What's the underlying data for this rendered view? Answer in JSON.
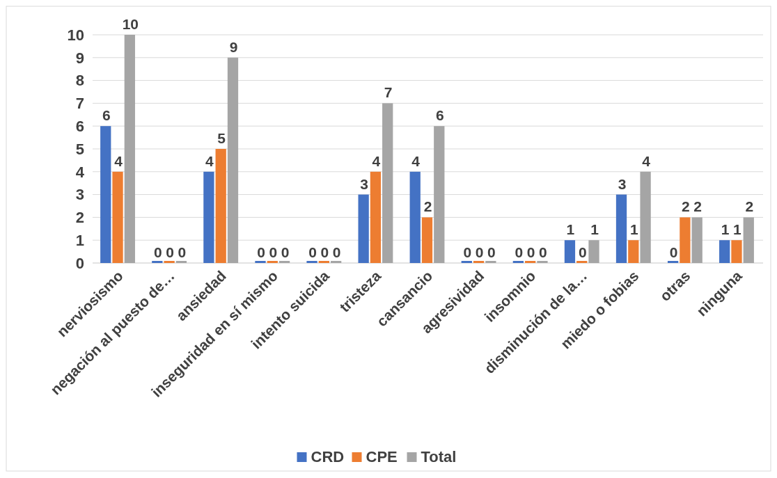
{
  "chart_data": {
    "type": "bar",
    "categories": [
      "nerviosismo",
      "negación al puesto de…",
      "ansiedad",
      "inseguridad en sí mismo",
      "intento suicida",
      "tristeza",
      "cansancio",
      "agresividad",
      "insomnio",
      "disminución de la…",
      "miedo o fobias",
      "otras",
      "ninguna"
    ],
    "series": [
      {
        "name": "CRD",
        "color": "#4472c4",
        "values": [
          6,
          0,
          4,
          0,
          0,
          3,
          4,
          0,
          0,
          1,
          3,
          0,
          1
        ]
      },
      {
        "name": "CPE",
        "color": "#ed7d31",
        "values": [
          4,
          0,
          5,
          0,
          0,
          4,
          2,
          0,
          0,
          0,
          1,
          2,
          1
        ]
      },
      {
        "name": "Total",
        "color": "#a5a5a5",
        "values": [
          10,
          0,
          9,
          0,
          0,
          7,
          6,
          0,
          0,
          1,
          4,
          2,
          2
        ]
      }
    ],
    "ylim": [
      0,
      10
    ],
    "yticks": [
      0,
      1,
      2,
      3,
      4,
      5,
      6,
      7,
      8,
      9,
      10
    ],
    "grid": "y",
    "legend": "bottom",
    "data_labels": true
  }
}
